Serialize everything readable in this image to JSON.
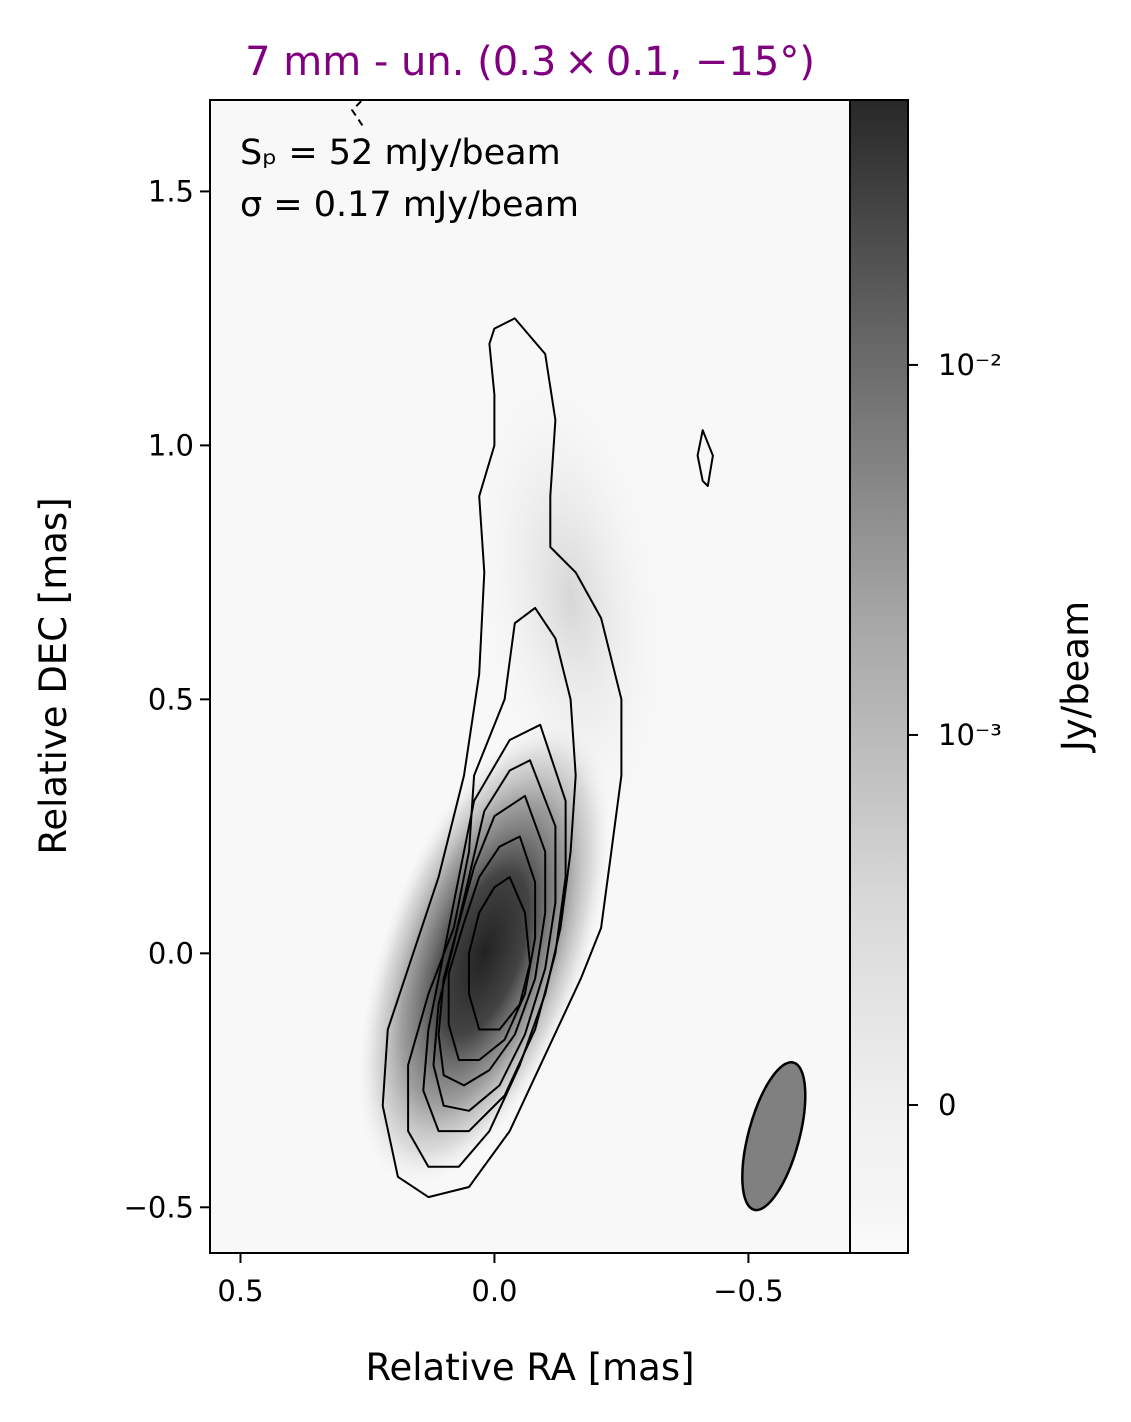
{
  "chart_data": {
    "type": "heatmap",
    "title": "7 mm - un. (0.3 × 0.1, −15°)",
    "title_color": "#800080",
    "xlabel": "Relative RA [mas]",
    "ylabel": "Relative DEC [mas]",
    "xlim": [
      0.56,
      -0.7
    ],
    "ylim": [
      -0.59,
      1.68
    ],
    "x_ticks": [
      {
        "value": 0.5,
        "label": "0.5"
      },
      {
        "value": 0.0,
        "label": "0.0"
      },
      {
        "value": -0.5,
        "label": "−0.5"
      }
    ],
    "y_ticks": [
      {
        "value": 1.5,
        "label": "1.5"
      },
      {
        "value": 1.0,
        "label": "1.0"
      },
      {
        "value": 0.5,
        "label": "0.5"
      },
      {
        "value": 0.0,
        "label": "0.0"
      },
      {
        "value": -0.5,
        "label": "−0.5"
      }
    ],
    "colorbar": {
      "label": "Jy/beam",
      "scale": "symlog",
      "ticks": [
        {
          "value": 0,
          "label": "0"
        },
        {
          "value": 0.001,
          "label": "10⁻³"
        },
        {
          "value": 0.01,
          "label": "10⁻²"
        }
      ]
    },
    "annotations": [
      "Sₚ = 52 mJy/beam",
      "σ = 0.17 mJy/beam"
    ],
    "peak_flux_mJy_per_beam": 52,
    "rms_mJy_per_beam": 0.17,
    "beam": {
      "major_mas": 0.3,
      "minor_mas": 0.1,
      "pa_deg": -15,
      "center": [
        -0.55,
        -0.36
      ]
    },
    "core": {
      "ra": 0.02,
      "dec": 0.0
    },
    "contours": [
      [
        [
          0.0,
          1.23
        ],
        [
          -0.04,
          1.25
        ],
        [
          -0.1,
          1.18
        ],
        [
          -0.12,
          1.05
        ],
        [
          -0.11,
          0.9
        ],
        [
          -0.11,
          0.8
        ],
        [
          -0.16,
          0.75
        ],
        [
          -0.21,
          0.66
        ],
        [
          -0.25,
          0.5
        ],
        [
          -0.25,
          0.35
        ],
        [
          -0.23,
          0.2
        ],
        [
          -0.21,
          0.05
        ],
        [
          -0.17,
          -0.05
        ],
        [
          -0.1,
          -0.2
        ],
        [
          -0.03,
          -0.35
        ],
        [
          0.05,
          -0.46
        ],
        [
          0.13,
          -0.48
        ],
        [
          0.19,
          -0.44
        ],
        [
          0.22,
          -0.3
        ],
        [
          0.21,
          -0.15
        ],
        [
          0.16,
          0.0
        ],
        [
          0.11,
          0.15
        ],
        [
          0.06,
          0.35
        ],
        [
          0.03,
          0.55
        ],
        [
          0.02,
          0.75
        ],
        [
          0.03,
          0.9
        ],
        [
          0.0,
          1.0
        ],
        [
          0.0,
          1.1
        ],
        [
          0.01,
          1.2
        ],
        [
          0.0,
          1.23
        ]
      ],
      [
        [
          -0.08,
          0.68
        ],
        [
          -0.12,
          0.62
        ],
        [
          -0.15,
          0.5
        ],
        [
          -0.16,
          0.35
        ],
        [
          -0.15,
          0.2
        ],
        [
          -0.13,
          0.05
        ],
        [
          -0.1,
          -0.08
        ],
        [
          -0.05,
          -0.22
        ],
        [
          0.01,
          -0.35
        ],
        [
          0.07,
          -0.42
        ],
        [
          0.13,
          -0.42
        ],
        [
          0.17,
          -0.35
        ],
        [
          0.17,
          -0.22
        ],
        [
          0.13,
          -0.08
        ],
        [
          0.08,
          0.05
        ],
        [
          0.05,
          0.2
        ],
        [
          0.04,
          0.35
        ],
        [
          -0.02,
          0.5
        ],
        [
          -0.04,
          0.65
        ],
        [
          -0.08,
          0.68
        ]
      ],
      [
        [
          -0.09,
          0.45
        ],
        [
          -0.14,
          0.3
        ],
        [
          -0.14,
          0.15
        ],
        [
          -0.12,
          0.0
        ],
        [
          -0.08,
          -0.15
        ],
        [
          -0.02,
          -0.28
        ],
        [
          0.05,
          -0.35
        ],
        [
          0.11,
          -0.35
        ],
        [
          0.14,
          -0.27
        ],
        [
          0.13,
          -0.15
        ],
        [
          0.1,
          0.0
        ],
        [
          0.07,
          0.15
        ],
        [
          0.04,
          0.3
        ],
        [
          -0.03,
          0.42
        ],
        [
          -0.09,
          0.45
        ]
      ],
      [
        [
          -0.07,
          0.38
        ],
        [
          -0.12,
          0.25
        ],
        [
          -0.12,
          0.1
        ],
        [
          -0.1,
          -0.03
        ],
        [
          -0.06,
          -0.16
        ],
        [
          -0.01,
          -0.26
        ],
        [
          0.05,
          -0.31
        ],
        [
          0.1,
          -0.3
        ],
        [
          0.12,
          -0.22
        ],
        [
          0.11,
          -0.1
        ],
        [
          0.08,
          0.02
        ],
        [
          0.05,
          0.15
        ],
        [
          0.02,
          0.28
        ],
        [
          -0.03,
          0.36
        ],
        [
          -0.07,
          0.38
        ]
      ],
      [
        [
          -0.06,
          0.31
        ],
        [
          -0.1,
          0.2
        ],
        [
          -0.1,
          0.08
        ],
        [
          -0.08,
          -0.05
        ],
        [
          -0.04,
          -0.16
        ],
        [
          0.01,
          -0.23
        ],
        [
          0.06,
          -0.26
        ],
        [
          0.1,
          -0.24
        ],
        [
          0.11,
          -0.16
        ],
        [
          0.1,
          -0.05
        ],
        [
          0.07,
          0.06
        ],
        [
          0.04,
          0.17
        ],
        [
          0.0,
          0.27
        ],
        [
          -0.06,
          0.31
        ]
      ],
      [
        [
          -0.05,
          0.23
        ],
        [
          -0.08,
          0.14
        ],
        [
          -0.08,
          0.03
        ],
        [
          -0.06,
          -0.08
        ],
        [
          -0.02,
          -0.17
        ],
        [
          0.03,
          -0.21
        ],
        [
          0.07,
          -0.21
        ],
        [
          0.09,
          -0.14
        ],
        [
          0.09,
          -0.04
        ],
        [
          0.06,
          0.06
        ],
        [
          0.03,
          0.15
        ],
        [
          -0.01,
          0.21
        ],
        [
          -0.05,
          0.23
        ]
      ],
      [
        [
          -0.03,
          0.15
        ],
        [
          -0.06,
          0.08
        ],
        [
          -0.07,
          -0.02
        ],
        [
          -0.05,
          -0.1
        ],
        [
          -0.01,
          -0.15
        ],
        [
          0.03,
          -0.15
        ],
        [
          0.05,
          -0.08
        ],
        [
          0.05,
          0.0
        ],
        [
          0.03,
          0.08
        ],
        [
          0.0,
          0.13
        ],
        [
          -0.03,
          0.15
        ]
      ],
      [
        [
          -0.41,
          1.03
        ],
        [
          -0.43,
          0.98
        ],
        [
          -0.42,
          0.92
        ],
        [
          -0.41,
          0.93
        ],
        [
          -0.4,
          0.98
        ],
        [
          -0.41,
          1.03
        ]
      ]
    ],
    "negative_contour": [
      [
        0.26,
        1.63
      ],
      [
        0.28,
        1.66
      ],
      [
        0.26,
        1.68
      ]
    ]
  }
}
